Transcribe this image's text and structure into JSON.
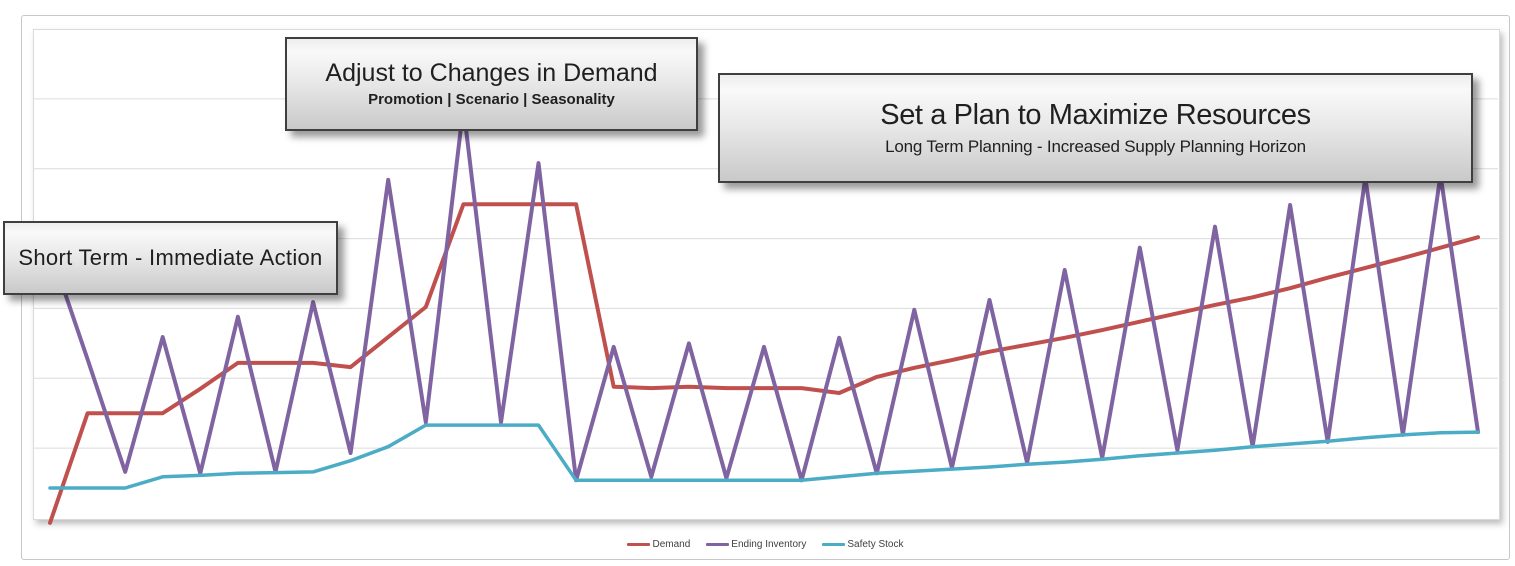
{
  "callouts": {
    "short_term": {
      "title": "Short Term - Immediate Action",
      "subtitle": ""
    },
    "adjust": {
      "title": "Adjust to Changes in Demand",
      "subtitle": "Promotion | Scenario | Seasonality"
    },
    "plan": {
      "title": "Set a Plan to Maximize Resources",
      "subtitle": "Long Term Planning - Increased Supply Planning Horizon"
    }
  },
  "chart_data": {
    "type": "line",
    "title": "",
    "xlabel": "",
    "ylabel": "",
    "x_tick_labels": "none shown (39 unlabeled time periods)",
    "ylim": [
      0,
      7
    ],
    "y_units": "gridline intervals (no numeric axis labels shown)",
    "grid": true,
    "legend_position": "bottom-center",
    "series": [
      {
        "name": "Demand",
        "color": "#C0504D",
        "stroke_width": 4,
        "values": [
          -0.07,
          1.5,
          1.5,
          1.5,
          1.85,
          2.22,
          2.22,
          2.22,
          2.16,
          2.59,
          3.02,
          4.49,
          4.49,
          4.49,
          4.49,
          1.88,
          1.86,
          1.88,
          1.86,
          1.86,
          1.86,
          1.79,
          2.02,
          2.15,
          2.26,
          2.38,
          2.48,
          2.58,
          2.69,
          2.81,
          2.93,
          3.05,
          3.16,
          3.29,
          3.44,
          3.58,
          3.72,
          3.87,
          4.02
        ]
      },
      {
        "name": "Ending Inventory",
        "color": "#8064A2",
        "stroke_width": 4,
        "values": [
          3.85,
          2.27,
          0.66,
          2.59,
          0.64,
          2.88,
          0.66,
          3.09,
          0.93,
          4.84,
          1.37,
          5.88,
          1.37,
          5.08,
          0.54,
          2.45,
          0.59,
          2.5,
          0.57,
          2.45,
          0.54,
          2.58,
          0.64,
          2.98,
          0.72,
          3.12,
          0.79,
          3.55,
          0.86,
          3.87,
          0.97,
          4.17,
          1.02,
          4.48,
          1.09,
          4.87,
          1.19,
          4.91,
          1.23
        ]
      },
      {
        "name": "Safety Stock",
        "color": "#4BACC6",
        "stroke_width": 3.5,
        "values": [
          0.43,
          0.43,
          0.43,
          0.59,
          0.61,
          0.64,
          0.65,
          0.66,
          0.82,
          1.02,
          1.33,
          1.33,
          1.33,
          1.33,
          0.54,
          0.54,
          0.54,
          0.54,
          0.54,
          0.54,
          0.54,
          0.59,
          0.64,
          0.67,
          0.7,
          0.73,
          0.77,
          0.8,
          0.84,
          0.89,
          0.93,
          0.97,
          1.02,
          1.06,
          1.1,
          1.15,
          1.19,
          1.22,
          1.23
        ]
      }
    ]
  }
}
